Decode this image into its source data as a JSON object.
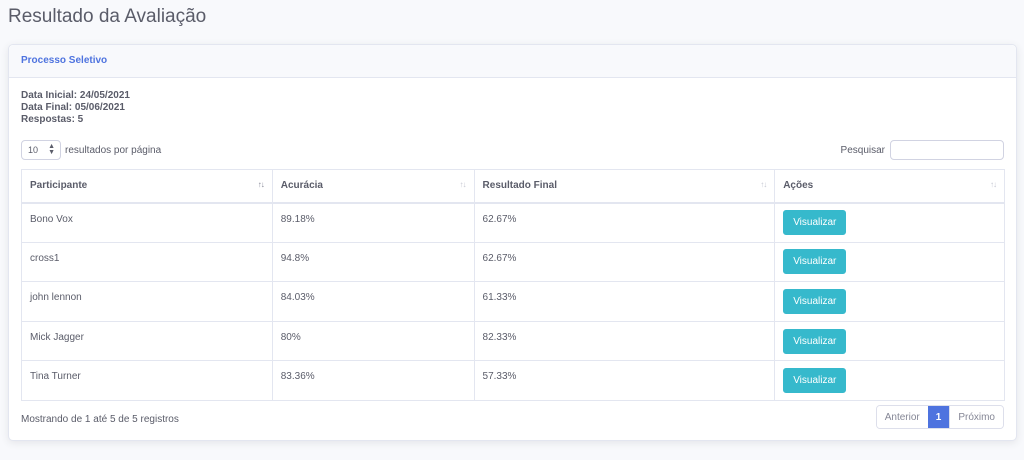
{
  "page": {
    "title": "Resultado da Avaliação"
  },
  "card": {
    "title": "Processo Seletivo",
    "info": {
      "data_inicial": "Data Inicial: 24/05/2021",
      "data_final": "Data Final: 05/06/2021",
      "respostas": "Respostas: 5"
    }
  },
  "table_controls": {
    "page_length": "10",
    "page_length_label": "resultados por página",
    "search_label": "Pesquisar",
    "search_value": ""
  },
  "table": {
    "columns": [
      "Participante",
      "Acurácia",
      "Resultado Final",
      "Ações"
    ],
    "rows": [
      {
        "participante": "Bono Vox",
        "acuracia": "89.18%",
        "resultado": "62.67%",
        "acao": "Visualizar"
      },
      {
        "participante": "cross1",
        "acuracia": "94.8%",
        "resultado": "62.67%",
        "acao": "Visualizar"
      },
      {
        "participante": "john lennon",
        "acuracia": "84.03%",
        "resultado": "61.33%",
        "acao": "Visualizar"
      },
      {
        "participante": "Mick Jagger",
        "acuracia": "80%",
        "resultado": "82.33%",
        "acao": "Visualizar"
      },
      {
        "participante": "Tina Turner",
        "acuracia": "83.36%",
        "resultado": "57.33%",
        "acao": "Visualizar"
      }
    ]
  },
  "footer": {
    "info": "Mostrando de 1 até 5 de 5 registros",
    "prev": "Anterior",
    "page": "1",
    "next": "Próximo"
  },
  "colors": {
    "primary": "#4e73df",
    "info": "#36b9cc",
    "text": "#5a5c69"
  }
}
